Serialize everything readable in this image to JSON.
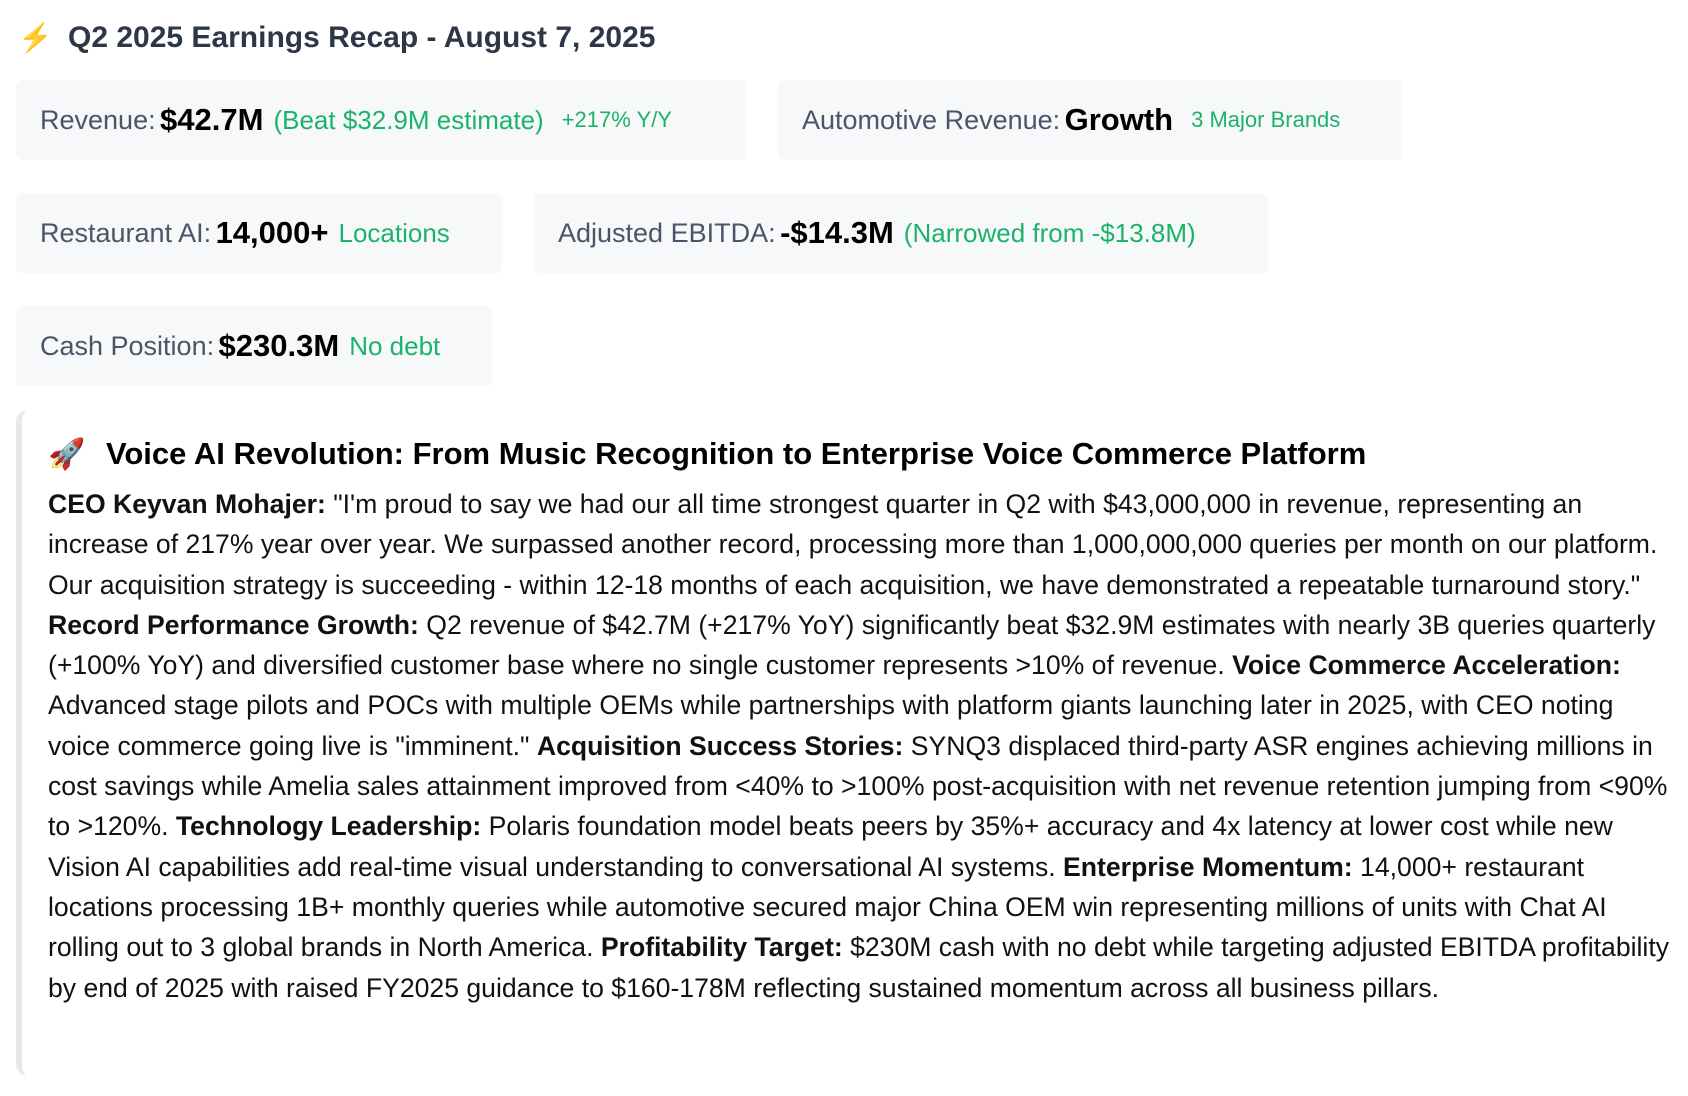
{
  "header": {
    "icon": "lightning-icon",
    "title": "Q2 2025 Earnings Recap - August 7, 2025"
  },
  "metrics": {
    "revenue": {
      "label": "Revenue:",
      "value": "$42.7M",
      "note": "(Beat $32.9M estimate)",
      "sub": "+217% Y/Y"
    },
    "automotive": {
      "label": "Automotive Revenue:",
      "value": "Growth",
      "sub": "3 Major Brands"
    },
    "restaurant": {
      "label": "Restaurant AI:",
      "value": "14,000+",
      "note": "Locations"
    },
    "ebitda": {
      "label": "Adjusted EBITDA:",
      "value": "-$14.3M",
      "note": "(Narrowed from -$13.8M)"
    },
    "cash": {
      "label": "Cash Position:",
      "value": "$230.3M",
      "note": "No debt"
    }
  },
  "section": {
    "icon": "rocket-icon",
    "title": "Voice AI Revolution: From Music Recognition to Enterprise Voice Commerce Platform",
    "paragraphs": [
      {
        "heading": "CEO Keyvan Mohajer:",
        "text": " \"I'm proud to say we had our all time strongest quarter in Q2 with $43,000,000 in revenue, representing an increase of 217% year over year. We surpassed another record, processing more than 1,000,000,000 queries per month on our platform. Our acquisition strategy is succeeding - within 12-18 months of each acquisition, we have demonstrated a repeatable turnaround story.\" "
      },
      {
        "heading": "Record Performance Growth:",
        "text": " Q2 revenue of $42.7M (+217% YoY) significantly beat $32.9M estimates with nearly 3B queries quarterly (+100% YoY) and diversified customer base where no single customer represents >10% of revenue. "
      },
      {
        "heading": "Voice Commerce Acceleration:",
        "text": " Advanced stage pilots and POCs with multiple OEMs while partnerships with platform giants launching later in 2025, with CEO noting voice commerce going live is \"imminent.\" "
      },
      {
        "heading": "Acquisition Success Stories:",
        "text": " SYNQ3 displaced third-party ASR engines achieving millions in cost savings while Amelia sales attainment improved from <40% to >100% post-acquisition with net revenue retention jumping from <90% to >120%. "
      },
      {
        "heading": "Technology Leadership:",
        "text": " Polaris foundation model beats peers by 35%+ accuracy and 4x latency at lower cost while new Vision AI capabilities add real-time visual understanding to conversational AI systems. "
      },
      {
        "heading": "Enterprise Momentum:",
        "text": " 14,000+ restaurant locations processing 1B+ monthly queries while automotive secured major China OEM win representing millions of units with Chat AI rolling out to 3 global brands in North America. "
      },
      {
        "heading": "Profitability Target:",
        "text": " $230M cash with no debt while targeting adjusted EBITDA profitability by end of 2025 with raised FY2025 guidance to $160-178M reflecting sustained momentum across all business pillars."
      }
    ]
  },
  "colors": {
    "accent_green": "#1bb36a",
    "title_dark": "#2d3748",
    "card_bg": "#f7f8fa",
    "bolt": "#f5b800"
  }
}
